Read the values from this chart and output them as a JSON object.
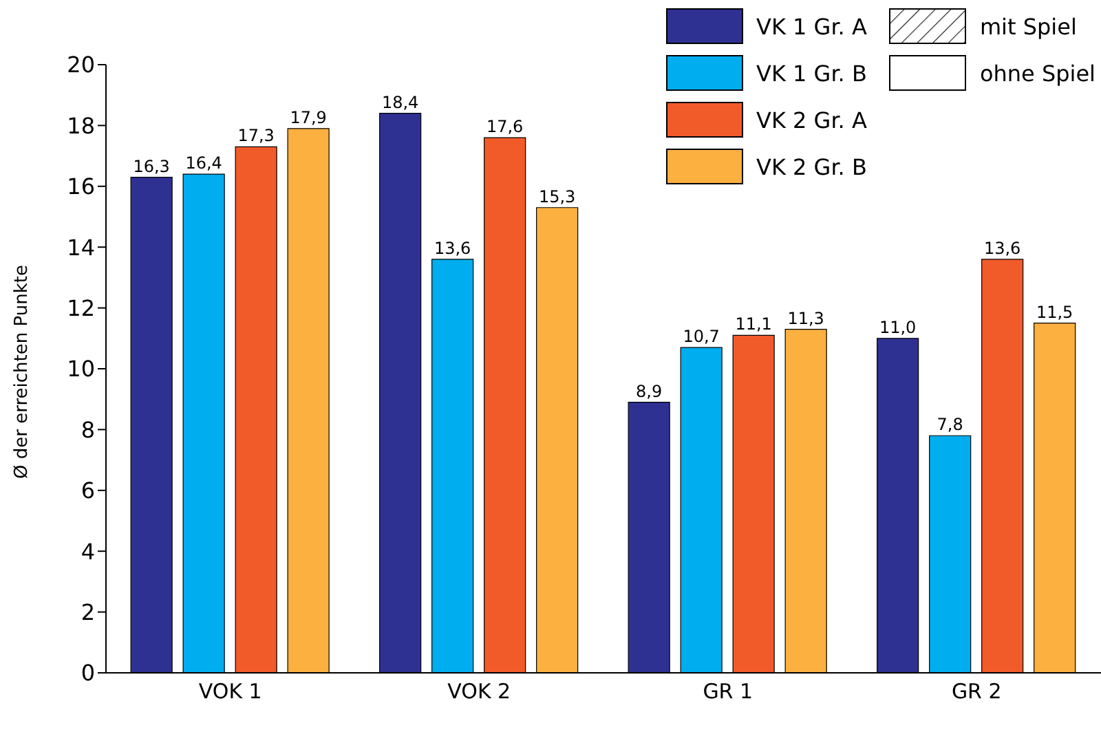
{
  "chart_data": {
    "type": "bar",
    "ylabel": "Ø der erreichten Punkte",
    "categories": [
      "VOK 1",
      "VOK 2",
      "GR 1",
      "GR 2"
    ],
    "series": [
      {
        "name": "VK 1 Gr. A",
        "color": "#2e3192",
        "values": [
          16.3,
          18.4,
          8.9,
          11.0
        ],
        "value_labels": [
          "16,3",
          "18,4",
          "8,9",
          "11,0"
        ]
      },
      {
        "name": "VK 1 Gr. B",
        "color": "#00aeef",
        "values": [
          16.4,
          13.6,
          10.7,
          7.8
        ],
        "value_labels": [
          "16,4",
          "13,6",
          "10,7",
          "7,8"
        ]
      },
      {
        "name": "VK 2 Gr. A",
        "color": "#f15a29",
        "values": [
          17.3,
          17.6,
          11.1,
          13.6
        ],
        "value_labels": [
          "17,3",
          "17,6",
          "11,1",
          "13,6"
        ]
      },
      {
        "name": "VK 2 Gr. B",
        "color": "#fbb040",
        "values": [
          17.9,
          15.3,
          11.3,
          11.5
        ],
        "value_labels": [
          "17,9",
          "15,3",
          "11,3",
          "11,5"
        ]
      }
    ],
    "annotations": [
      "mit Spiel",
      "ohne Spiel"
    ],
    "ylim": [
      0,
      20
    ],
    "yticks": [
      0,
      2,
      4,
      6,
      8,
      10,
      12,
      14,
      16,
      18,
      20
    ],
    "grid": false,
    "legend": "top right"
  }
}
